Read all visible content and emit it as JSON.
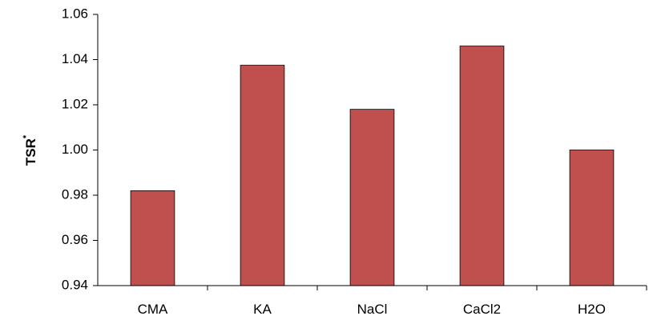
{
  "chart_data": {
    "type": "bar",
    "categories": [
      "CMA",
      "KA",
      "NaCl",
      "CaCl2",
      "H2O"
    ],
    "values": [
      0.982,
      1.0375,
      1.018,
      1.046,
      1.0
    ],
    "title": "",
    "xlabel": "",
    "ylabel": "TSR",
    "ylabel_superscript": "*",
    "ylim": [
      0.94,
      1.06
    ],
    "yticks": [
      "0.94",
      "0.96",
      "0.98",
      "1.00",
      "1.02",
      "1.04",
      "1.06"
    ],
    "grid": false,
    "legend": "none",
    "colors": {
      "bar_fill": "#c0504d",
      "bar_stroke": "#000000",
      "axis": "#000000"
    }
  }
}
